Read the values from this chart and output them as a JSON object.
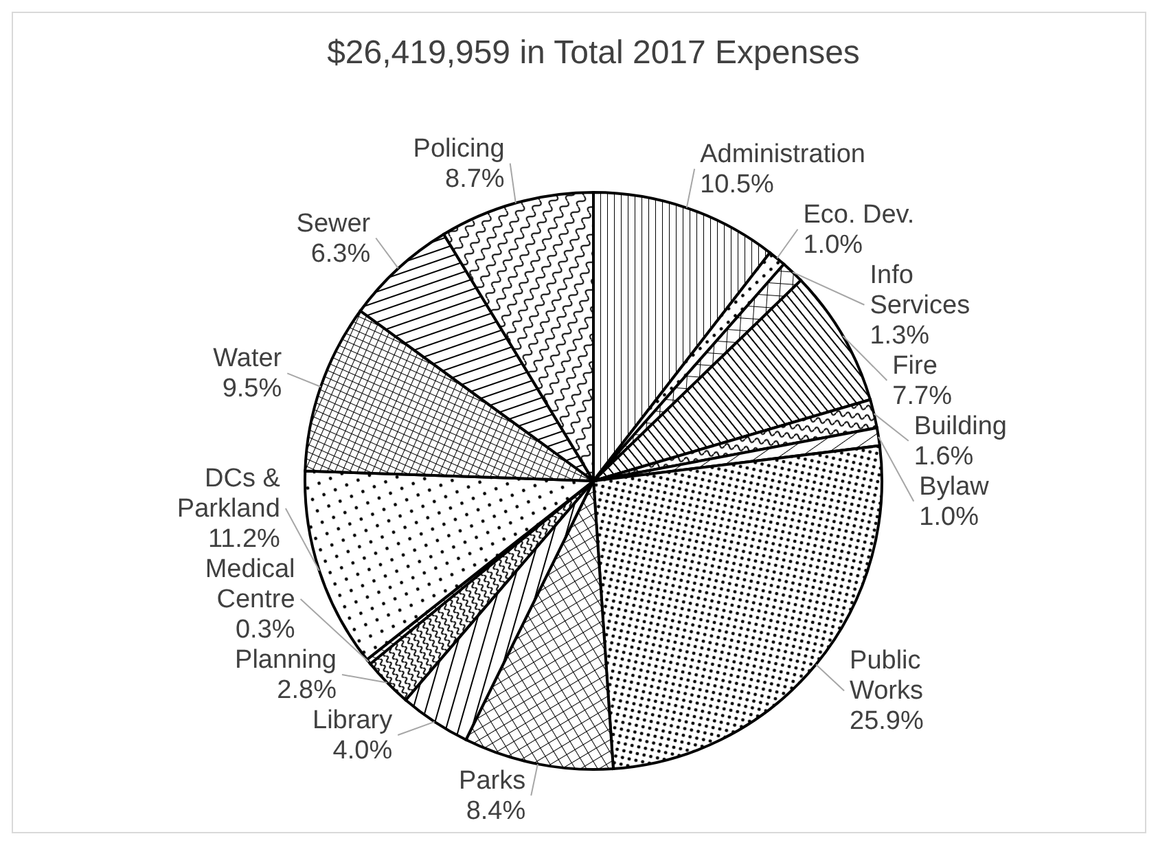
{
  "chart_data": {
    "type": "pie",
    "title": "$26,419,959 in Total 2017 Expenses",
    "categories": [
      "Administration",
      "Eco. Dev.",
      "Info\nServices",
      "Fire",
      "Building",
      "Bylaw",
      "Public\nWorks",
      "Parks",
      "Library",
      "Planning",
      "Medical\nCentre",
      "DCs &\nParkland",
      "Water",
      "Sewer",
      "Policing"
    ],
    "values": [
      10.5,
      1.0,
      1.3,
      7.7,
      1.6,
      1.0,
      25.9,
      8.4,
      4.0,
      2.8,
      0.3,
      11.2,
      9.5,
      6.3,
      8.7
    ],
    "value_labels": [
      "10.5%",
      "1.0%",
      "1.3%",
      "7.7%",
      "1.6%",
      "1.0%",
      "25.9%",
      "8.4%",
      "4.0%",
      "2.8%",
      "0.3%",
      "11.2%",
      "9.5%",
      "6.3%",
      "8.7%"
    ]
  }
}
